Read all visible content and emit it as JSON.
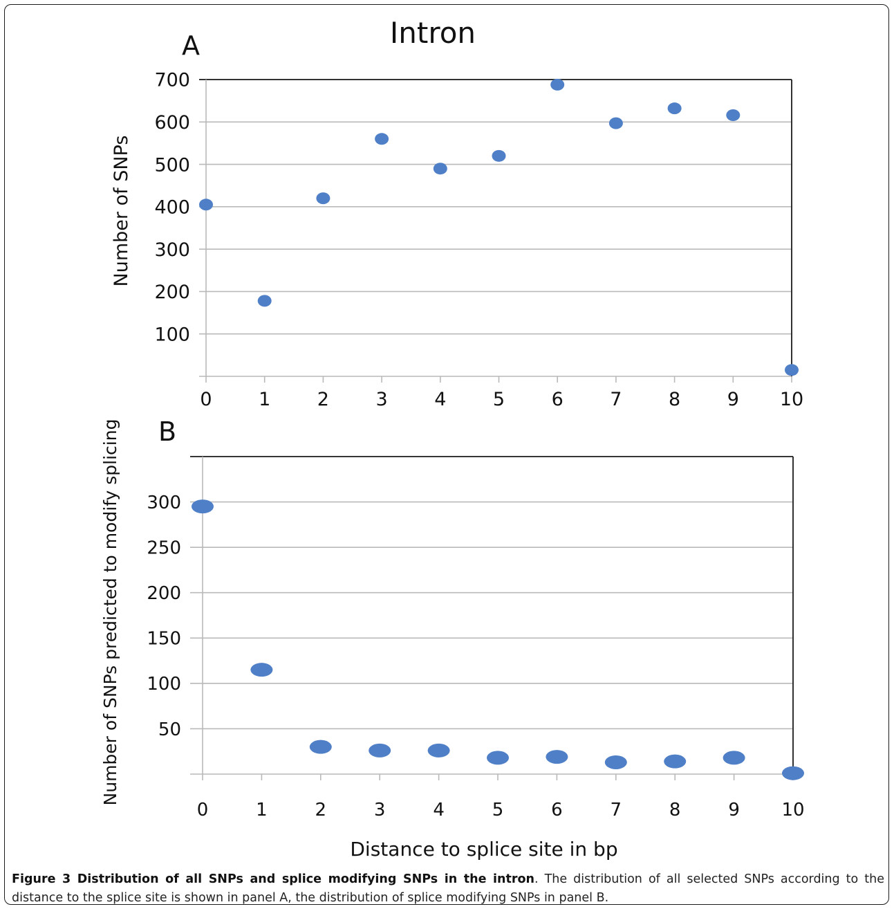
{
  "figure": {
    "super_title": "Intron",
    "caption_bold": "Figure 3 Distribution of all SNPs and splice modifying SNPs in the intron",
    "caption_rest": ". The distribution of all selected SNPs according to the distance to the splice site is shown in panel A, the distribution of splice modifying SNPs in panel B.",
    "shared_xlabel": "Distance to splice site in bp",
    "marker_color": "#4f7fc6"
  },
  "chart_data": [
    {
      "type": "scatter",
      "panel_label": "A",
      "title": "Intron",
      "xlabel": "Distance to splice site in bp",
      "ylabel": "Number of SNPs",
      "x": [
        0,
        1,
        2,
        3,
        4,
        5,
        6,
        7,
        8,
        9,
        10
      ],
      "y": [
        405,
        178,
        420,
        560,
        490,
        520,
        688,
        597,
        632,
        616,
        15
      ],
      "xticks": [
        "0",
        "1",
        "2",
        "3",
        "4",
        "5",
        "6",
        "7",
        "8",
        "9",
        "10"
      ],
      "yticks": [
        "100",
        "200",
        "300",
        "400",
        "500",
        "600",
        "700"
      ],
      "ytick_values": [
        100,
        200,
        300,
        400,
        500,
        600,
        700
      ],
      "xlim": [
        0,
        10
      ],
      "ylim": [
        0,
        700
      ],
      "grid": true
    },
    {
      "type": "scatter",
      "panel_label": "B",
      "xlabel": "Distance to splice site in bp",
      "ylabel": "Number of SNPs predicted to modify splicing",
      "x": [
        0,
        1,
        2,
        3,
        4,
        5,
        6,
        7,
        8,
        9,
        10
      ],
      "y": [
        295,
        115,
        30,
        26,
        26,
        18,
        19,
        13,
        14,
        18,
        1
      ],
      "xticks": [
        "0",
        "1",
        "2",
        "3",
        "4",
        "5",
        "6",
        "7",
        "8",
        "9",
        "10"
      ],
      "yticks": [
        "50",
        "100",
        "150",
        "200",
        "250",
        "300"
      ],
      "ytick_values": [
        50,
        100,
        150,
        200,
        250,
        300
      ],
      "xlim": [
        0,
        10
      ],
      "ylim": [
        0,
        350
      ],
      "grid": true
    }
  ]
}
